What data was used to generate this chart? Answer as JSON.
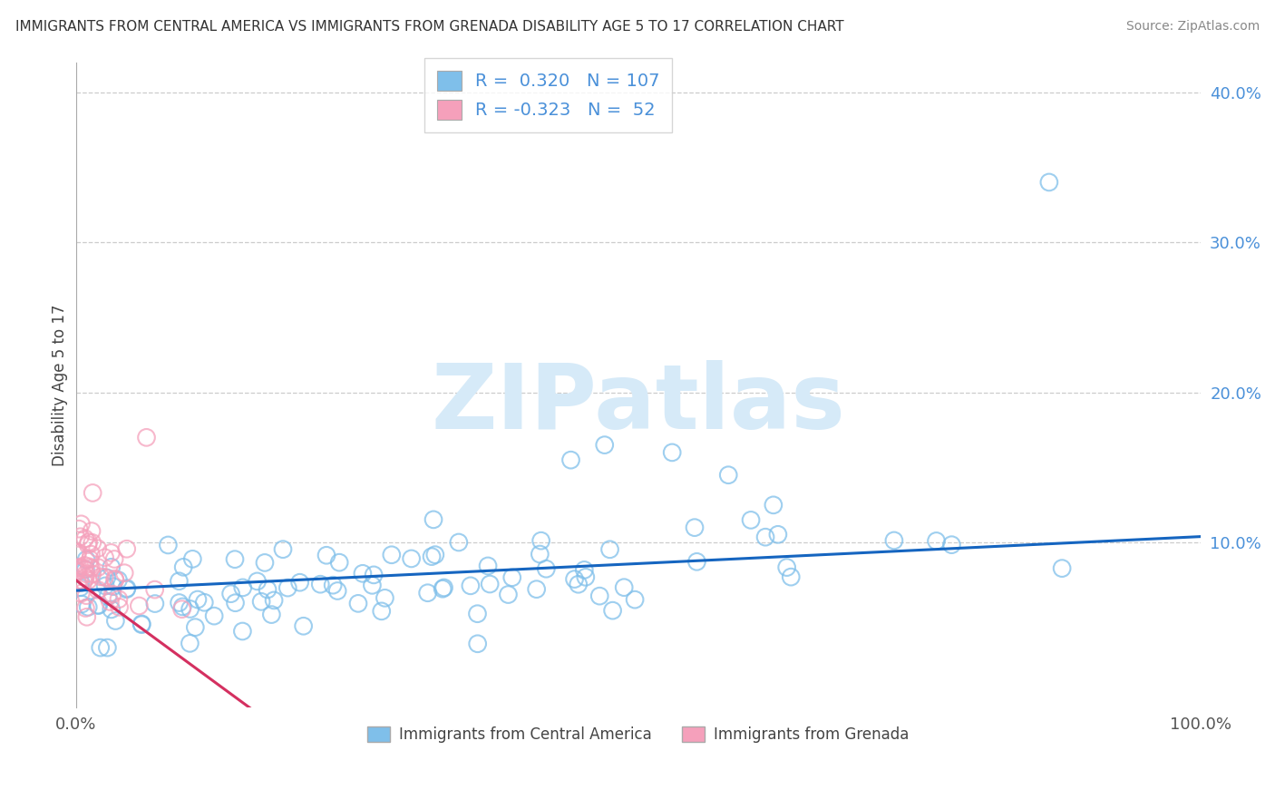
{
  "title": "IMMIGRANTS FROM CENTRAL AMERICA VS IMMIGRANTS FROM GRENADA DISABILITY AGE 5 TO 17 CORRELATION CHART",
  "source": "Source: ZipAtlas.com",
  "ylabel": "Disability Age 5 to 17",
  "legend_label1": "Immigrants from Central America",
  "legend_label2": "Immigrants from Grenada",
  "R1": 0.32,
  "N1": 107,
  "R2": -0.323,
  "N2": 52,
  "color_blue": "#7fbfea",
  "color_pink": "#f5a0bb",
  "trend_blue": "#1565c0",
  "trend_pink": "#d43060",
  "watermark_color": "#d6eaf8",
  "background_color": "#ffffff",
  "xlim": [
    0.0,
    1.0
  ],
  "ylim": [
    -0.01,
    0.42
  ],
  "yticks": [
    0.1,
    0.2,
    0.3,
    0.4
  ],
  "grid_color": "#cccccc",
  "title_color": "#333333",
  "source_color": "#888888",
  "tick_color": "#4a90d9",
  "legend_text_color": "#4a90d9",
  "blue_seed": 99,
  "pink_seed": 77
}
